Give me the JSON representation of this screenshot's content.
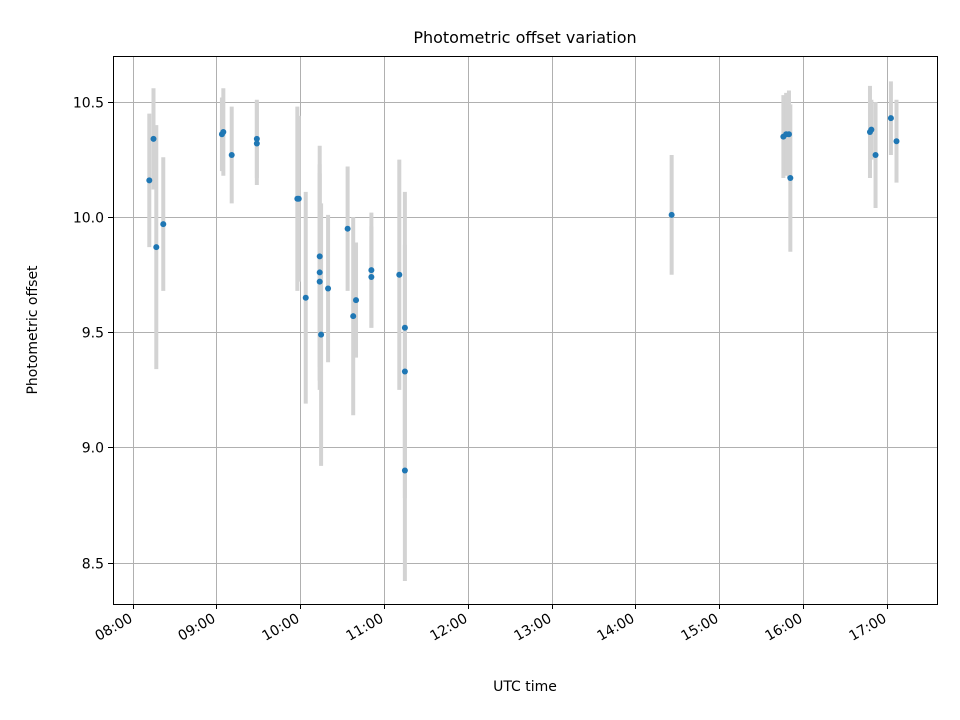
{
  "chart_data": {
    "type": "scatter",
    "title": "Photometric offset variation",
    "xlabel": "UTC time",
    "ylabel": "Photometric offset",
    "xlim": [
      "07:46",
      "17:36"
    ],
    "ylim": [
      8.32,
      10.7
    ],
    "x_ticks": [
      "08:00",
      "09:00",
      "10:00",
      "11:00",
      "12:00",
      "13:00",
      "14:00",
      "15:00",
      "16:00",
      "17:00"
    ],
    "y_ticks": [
      8.5,
      9.0,
      9.5,
      10.0,
      10.5
    ],
    "y_tick_labels": [
      "8.5",
      "9.0",
      "9.5",
      "10.0",
      "10.5"
    ],
    "grid": true,
    "colors": {
      "point": "#1f77b4",
      "errorbar": "#d3d3d3"
    },
    "points": [
      {
        "x": "08:12",
        "y": 10.16,
        "yerr": 0.29
      },
      {
        "x": "08:15",
        "y": 10.34,
        "yerr": 0.22
      },
      {
        "x": "08:17",
        "y": 9.87,
        "yerr": 0.53
      },
      {
        "x": "08:22",
        "y": 9.97,
        "yerr": 0.29
      },
      {
        "x": "09:04",
        "y": 10.36,
        "yerr": 0.16
      },
      {
        "x": "09:05",
        "y": 10.37,
        "yerr": 0.19
      },
      {
        "x": "09:11",
        "y": 10.27,
        "yerr": 0.21
      },
      {
        "x": "09:29",
        "y": 10.34,
        "yerr": 0.17
      },
      {
        "x": "09:29",
        "y": 10.32,
        "yerr": 0.18
      },
      {
        "x": "09:58",
        "y": 10.08,
        "yerr": 0.4
      },
      {
        "x": "09:59",
        "y": 10.08,
        "yerr": 0.36
      },
      {
        "x": "10:04",
        "y": 9.65,
        "yerr": 0.46
      },
      {
        "x": "10:14",
        "y": 9.83,
        "yerr": 0.48
      },
      {
        "x": "10:14",
        "y": 9.76,
        "yerr": 0.47
      },
      {
        "x": "10:14",
        "y": 9.72,
        "yerr": 0.47
      },
      {
        "x": "10:15",
        "y": 9.49,
        "yerr": 0.57
      },
      {
        "x": "10:20",
        "y": 9.69,
        "yerr": 0.32
      },
      {
        "x": "10:34",
        "y": 9.95,
        "yerr": 0.27
      },
      {
        "x": "10:38",
        "y": 9.57,
        "yerr": 0.43
      },
      {
        "x": "10:40",
        "y": 9.64,
        "yerr": 0.25
      },
      {
        "x": "10:51",
        "y": 9.77,
        "yerr": 0.25
      },
      {
        "x": "10:51",
        "y": 9.74,
        "yerr": 0.22
      },
      {
        "x": "11:11",
        "y": 9.75,
        "yerr": 0.5
      },
      {
        "x": "11:15",
        "y": 9.52,
        "yerr": 0.59
      },
      {
        "x": "11:15",
        "y": 9.33,
        "yerr": 0.55
      },
      {
        "x": "11:15",
        "y": 8.9,
        "yerr": 0.48
      },
      {
        "x": "14:26",
        "y": 10.01,
        "yerr": 0.26
      },
      {
        "x": "15:46",
        "y": 10.35,
        "yerr": 0.18
      },
      {
        "x": "15:48",
        "y": 10.36,
        "yerr": 0.18
      },
      {
        "x": "15:50",
        "y": 10.36,
        "yerr": 0.19
      },
      {
        "x": "15:51",
        "y": 10.17,
        "yerr": 0.32
      },
      {
        "x": "16:48",
        "y": 10.37,
        "yerr": 0.2
      },
      {
        "x": "16:49",
        "y": 10.38,
        "yerr": 0.13
      },
      {
        "x": "16:52",
        "y": 10.27,
        "yerr": 0.23
      },
      {
        "x": "17:03",
        "y": 10.43,
        "yerr": 0.16
      },
      {
        "x": "17:07",
        "y": 10.33,
        "yerr": 0.18
      }
    ]
  }
}
